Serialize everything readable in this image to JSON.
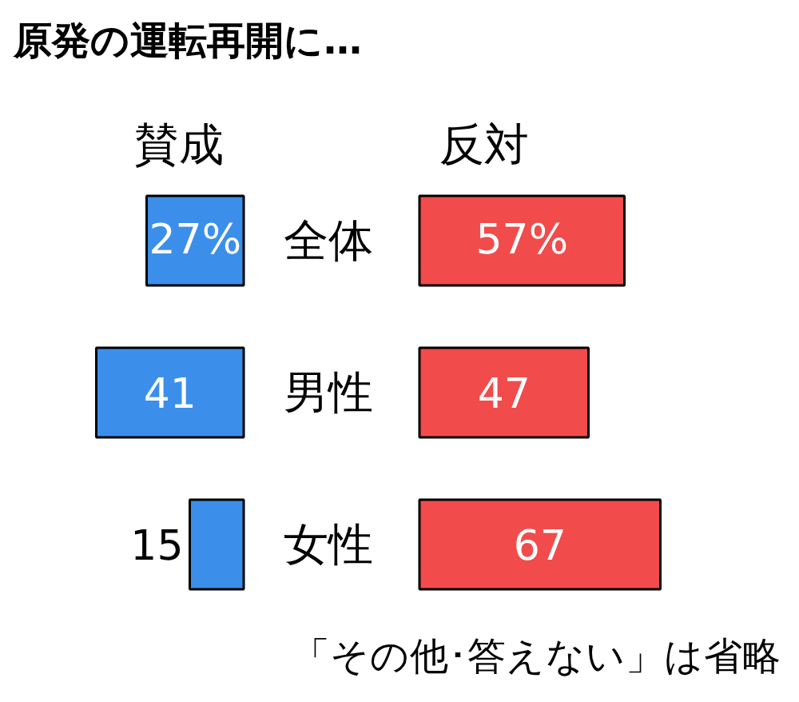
{
  "chart_data": [
    {
      "type": "bar",
      "orientation": "horizontal",
      "title": "原発の運転再開に…",
      "categories": [
        "全体",
        "男性",
        "女性"
      ],
      "tick_labels": "y",
      "series": [
        {
          "name": "賛成",
          "color": "#3b8fea",
          "values": [
            27,
            41,
            15
          ],
          "value_labels": [
            "27%",
            "41",
            "15"
          ]
        }
      ]
    },
    {
      "type": "bar",
      "orientation": "horizontal",
      "categories": [
        null,
        null,
        null
      ],
      "series": [
        {
          "name": "反対",
          "color": "#f24b4b",
          "values": [
            57,
            47,
            67
          ],
          "value_labels": [
            "57%",
            "47",
            "67"
          ]
        }
      ],
      "annotations": [
        "「その他･答えない」は省略"
      ]
    }
  ]
}
